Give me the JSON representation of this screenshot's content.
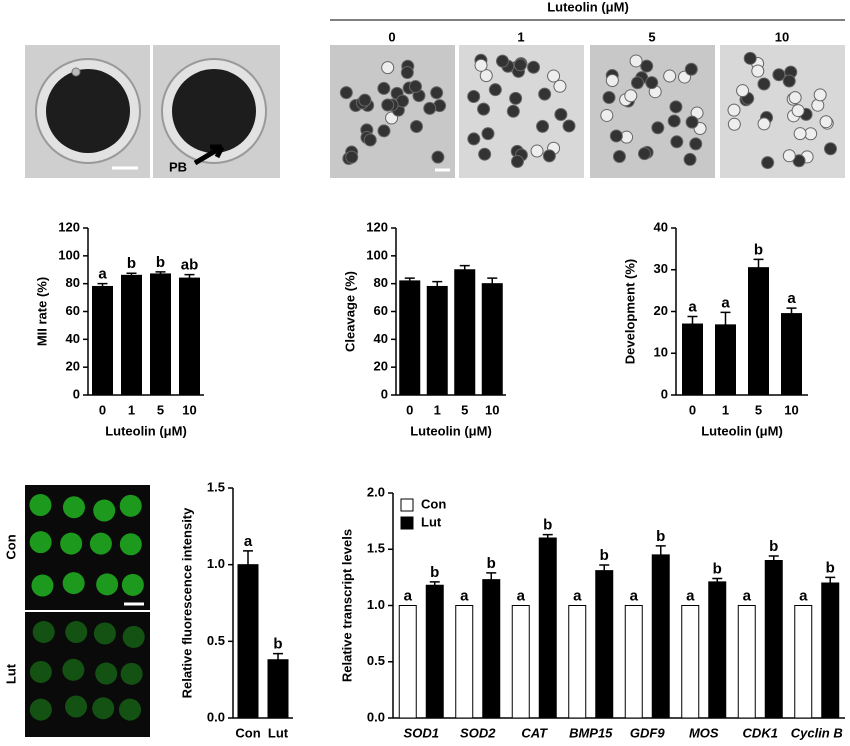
{
  "header": {
    "title": "Luteolin (μM)",
    "groups": [
      "0",
      "1",
      "5",
      "10"
    ],
    "arrow_label": "PB",
    "image_labels": [
      "Con",
      "Lut"
    ]
  },
  "chart_data": [
    {
      "type": "bar",
      "ylabel": "MII rate (%)",
      "xlabel": "Luteolin (μM)",
      "categories": [
        "0",
        "1",
        "5",
        "10"
      ],
      "values": [
        78,
        86,
        87,
        84
      ],
      "errors": [
        2,
        1.5,
        1.5,
        2.5
      ],
      "letters": [
        "a",
        "b",
        "b",
        "ab"
      ],
      "color": "#000000",
      "ylim": [
        0,
        120
      ],
      "yticks": [
        0,
        20,
        40,
        60,
        80,
        100,
        120
      ]
    },
    {
      "type": "bar",
      "ylabel": "Cleavage (%)",
      "xlabel": "Luteolin (μM)",
      "categories": [
        "0",
        "1",
        "5",
        "10"
      ],
      "values": [
        82,
        78,
        90,
        80
      ],
      "errors": [
        2,
        3.5,
        3,
        4
      ],
      "color": "#000000",
      "ylim": [
        0,
        120
      ],
      "yticks": [
        0,
        20,
        40,
        60,
        80,
        100,
        120
      ]
    },
    {
      "type": "bar",
      "ylabel": "Development (%)",
      "xlabel": "Luteolin (μM)",
      "categories": [
        "0",
        "1",
        "5",
        "10"
      ],
      "values": [
        17,
        16.8,
        30.5,
        19.5
      ],
      "errors": [
        1.8,
        3,
        2,
        1.3
      ],
      "letters": [
        "a",
        "a",
        "b",
        "a"
      ],
      "color": "#000000",
      "ylim": [
        0,
        40
      ],
      "yticks": [
        0,
        10,
        20,
        30,
        40
      ]
    },
    {
      "type": "bar",
      "ylabel": "Relative fluorescence intensity",
      "categories": [
        "Con",
        "Lut"
      ],
      "values": [
        1.0,
        0.38
      ],
      "errors": [
        0.09,
        0.04
      ],
      "letters": [
        "a",
        "b"
      ],
      "color": "#000000",
      "ylim": [
        0,
        1.5
      ],
      "yticks": [
        {
          "value": 0,
          "label": "0.0"
        },
        {
          "value": 0.5,
          "label": "0.5"
        },
        {
          "value": 1,
          "label": "1.0"
        },
        {
          "value": 1.5,
          "label": "1.5"
        }
      ]
    },
    {
      "type": "grouped-bar",
      "ylabel": "Relative transcript levels",
      "italic_categories": true,
      "legend": "upper left",
      "categories": [
        "SOD1",
        "SOD2",
        "CAT",
        "BMP15",
        "GDF9",
        "MOS",
        "CDK1",
        "Cyclin B"
      ],
      "series": [
        {
          "name": "Con",
          "color": "#ffffff",
          "values": [
            1,
            1,
            1,
            1,
            1,
            1,
            1,
            1
          ],
          "letters": [
            "a",
            "a",
            "a",
            "a",
            "a",
            "a",
            "a",
            "a"
          ]
        },
        {
          "name": "Lut",
          "color": "#000000",
          "values": [
            1.18,
            1.23,
            1.6,
            1.31,
            1.45,
            1.21,
            1.4,
            1.2
          ],
          "errors": [
            0.03,
            0.06,
            0.03,
            0.05,
            0.08,
            0.03,
            0.04,
            0.05
          ],
          "letters": [
            "b",
            "b",
            "b",
            "b",
            "b",
            "b",
            "b",
            "b"
          ]
        }
      ],
      "ylim": [
        0,
        2
      ],
      "yticks": [
        {
          "value": 0,
          "label": "0.0"
        },
        {
          "value": 0.5,
          "label": "0.5"
        },
        {
          "value": 1,
          "label": "1.0"
        },
        {
          "value": 1.5,
          "label": "1.5"
        },
        {
          "value": 2,
          "label": "2.0"
        }
      ]
    }
  ]
}
